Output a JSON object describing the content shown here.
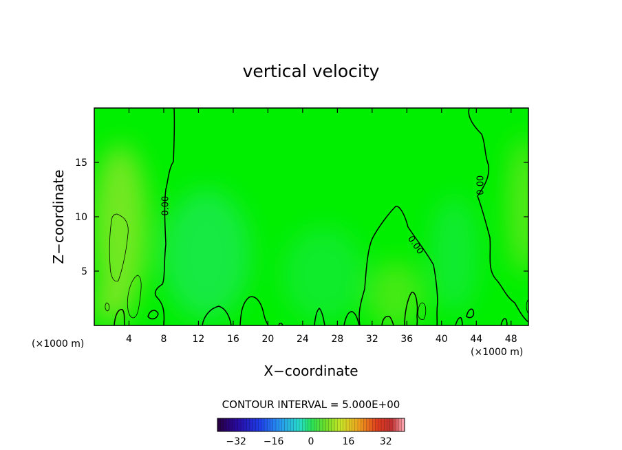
{
  "chart_data": {
    "type": "contour",
    "title": "vertical velocity",
    "xlabel": "X−coordinate",
    "ylabel": "Z−coordinate",
    "x_unit_left": "(×1000 m)",
    "x_unit_right": "(×1000 m)",
    "xlim": [
      0,
      50
    ],
    "ylim": [
      0,
      20
    ],
    "x_ticks": [
      4,
      8,
      12,
      16,
      20,
      24,
      28,
      32,
      36,
      40,
      44,
      48
    ],
    "y_ticks": [
      5,
      10,
      15
    ],
    "x_tick_labels": [
      "4",
      "8",
      "12",
      "16",
      "20",
      "24",
      "28",
      "32",
      "36",
      "40",
      "44",
      "48"
    ],
    "y_tick_labels": [
      "5",
      "10",
      "15"
    ],
    "contour_labels": [
      {
        "text": "0.00",
        "x": 8.2,
        "y": 11.0,
        "angle": -90
      },
      {
        "text": "0.00",
        "x": 37.0,
        "y": 7.4,
        "angle": 55
      },
      {
        "text": "0.00",
        "x": 44.5,
        "y": 12.9,
        "angle": -90
      }
    ],
    "contour_interval_label": "CONTOUR INTERVAL = 5.000E+00",
    "colorbar": {
      "range": [
        -40,
        40
      ],
      "tick_values": [
        -32,
        -16,
        0,
        16,
        32
      ],
      "tick_labels": [
        "−32",
        "−16",
        "0",
        "16",
        "32"
      ]
    },
    "colors": {
      "field_base": "#00ee00",
      "field_positive": "#9be52c",
      "field_negative": "#2ae87a",
      "contour_line": "#000000"
    }
  }
}
